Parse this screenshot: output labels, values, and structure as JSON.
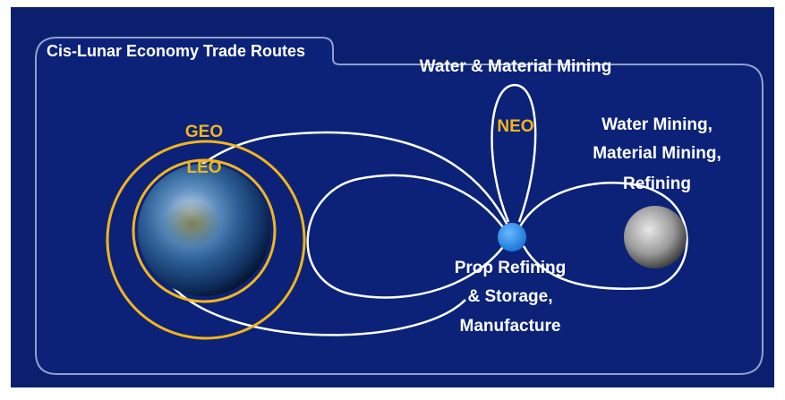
{
  "title": "Cis-Lunar Economy Trade Routes",
  "labels": {
    "neo_mining": "Water & Material Mining",
    "geo": "GEO",
    "leo": "LEO",
    "neo": "NEO",
    "moon": [
      "Water Mining,",
      "Material Mining,",
      "Refining"
    ],
    "hub": [
      "Prop Refining",
      "& Storage,",
      "Manufacture"
    ]
  }
}
